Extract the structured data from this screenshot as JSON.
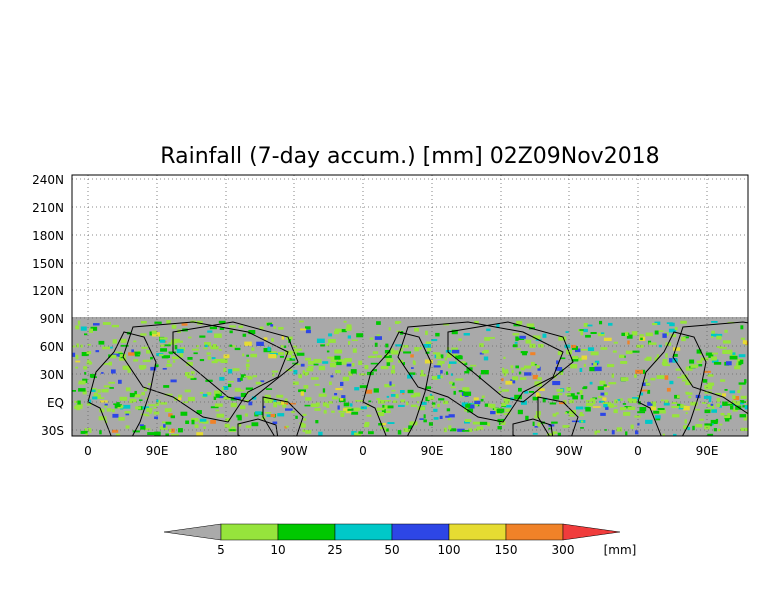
{
  "title": "Rainfall (7-day accum.) [mm] 02Z09Nov2018",
  "map": {
    "y_ticks": [
      "240N",
      "210N",
      "180N",
      "150N",
      "120N",
      "90N",
      "60N",
      "30N",
      "EQ",
      "30S"
    ],
    "x_ticks": [
      "0",
      "90E",
      "180",
      "90W",
      "0",
      "90E",
      "180",
      "90W",
      "0",
      "90E"
    ],
    "no_data_color": "#a9a9a9",
    "grid": "dotted"
  },
  "colorbar": {
    "unit": "[mm]",
    "labels": [
      "5",
      "10",
      "25",
      "50",
      "100",
      "150",
      "300"
    ],
    "colors": [
      "#aaaaaa",
      "#96e43c",
      "#00c800",
      "#00c8c8",
      "#2d46e6",
      "#e6dc32",
      "#f08228",
      "#f03c3c"
    ]
  }
}
